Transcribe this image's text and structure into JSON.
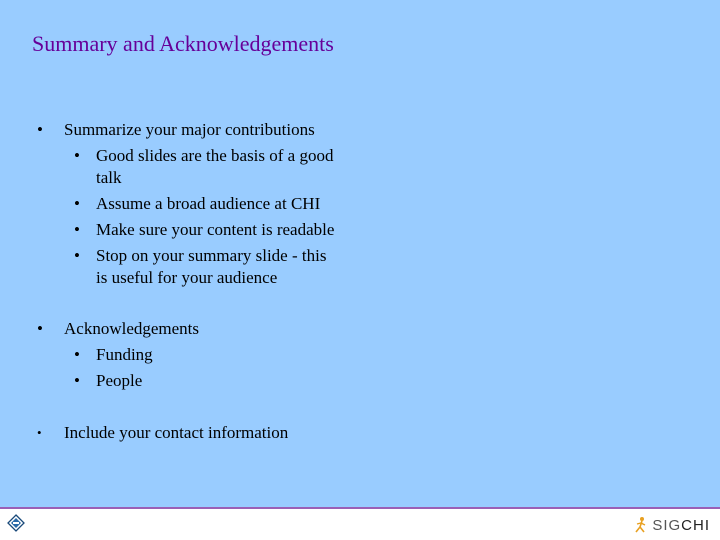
{
  "slide": {
    "title": "Summary and Acknowledgements",
    "bullet_char": "•",
    "items": [
      {
        "text": "Summarize your major contributions"
      },
      {
        "text": "Good slides are the basis of a good"
      },
      {
        "text": "talk"
      },
      {
        "text": "Assume a broad audience at CHI"
      },
      {
        "text": "Make sure your content is readable"
      },
      {
        "text": "Stop on your summary slide - this"
      },
      {
        "text": "is useful for your audience"
      },
      {
        "text": "Acknowledgements"
      },
      {
        "text": "Funding"
      },
      {
        "text": "People"
      },
      {
        "text": "Include your contact information"
      }
    ]
  },
  "footer": {
    "left_icon": "chi-conference-icon",
    "logo_sig": "SIG",
    "logo_chi": "CHI",
    "logo_icon": "sigchi-figure-icon",
    "rule_color": "#9b5fb5"
  },
  "colors": {
    "background": "#99ccff",
    "title": "#660099",
    "text": "#000000"
  }
}
